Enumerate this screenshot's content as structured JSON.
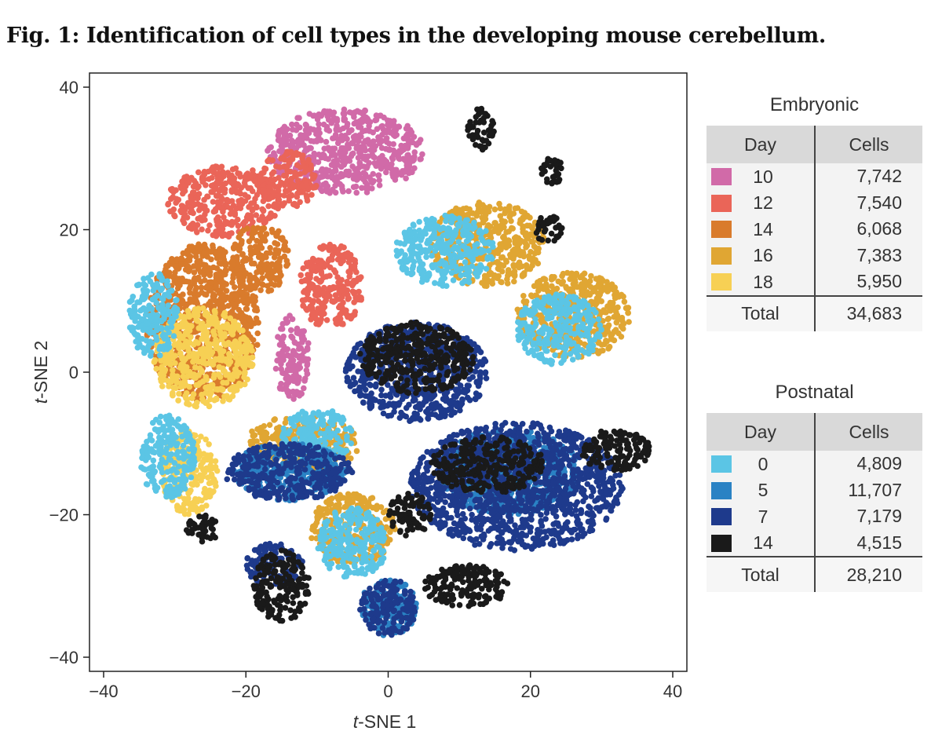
{
  "figure_title": "Fig. 1: Identification of cell types in the developing mouse cerebellum.",
  "chart_data": {
    "type": "scatter",
    "xlabel_italic": "t",
    "xlabel_rest": "-SNE 1",
    "ylabel_italic": "t",
    "ylabel_rest": "-SNE 2",
    "xlim": [
      -40,
      40
    ],
    "ylim": [
      -40,
      40
    ],
    "x_ticks": [
      -40,
      -20,
      0,
      20,
      40
    ],
    "y_ticks": [
      -40,
      -20,
      0,
      20,
      40
    ],
    "x_tick_labels": [
      "−40",
      "−20",
      "0",
      "20",
      "40"
    ],
    "y_tick_labels": [
      "−40",
      "−20",
      "0",
      "20",
      "40"
    ],
    "grid": false,
    "series_colors": {
      "E10": "#d16aa8",
      "E12": "#ea6558",
      "E14": "#d97b2c",
      "E16": "#e0a633",
      "E18": "#f7d054",
      "P0": "#5bc5e5",
      "P5": "#2a82c4",
      "P7": "#1e3a8c",
      "P14": "#1a1a1a"
    },
    "clusters": [
      {
        "group": "E10",
        "cx": -6,
        "cy": 31,
        "rx": 11,
        "ry": 6
      },
      {
        "group": "E10",
        "cx": -13.5,
        "cy": 2,
        "rx": 2.5,
        "ry": 6
      },
      {
        "group": "E12",
        "cx": -23,
        "cy": 24,
        "rx": 8,
        "ry": 5
      },
      {
        "group": "E12",
        "cx": -14,
        "cy": 27,
        "rx": 4,
        "ry": 4
      },
      {
        "group": "E12",
        "cx": -8,
        "cy": 12,
        "rx": 4.5,
        "ry": 6
      },
      {
        "group": "E14",
        "cx": -26,
        "cy": 7,
        "rx": 8,
        "ry": 11
      },
      {
        "group": "E14",
        "cx": -18,
        "cy": 16,
        "rx": 4,
        "ry": 5
      },
      {
        "group": "E16",
        "cx": 14,
        "cy": 18,
        "rx": 8,
        "ry": 6
      },
      {
        "group": "E16",
        "cx": 26,
        "cy": 8,
        "rx": 8,
        "ry": 6
      },
      {
        "group": "E16",
        "cx": -12,
        "cy": -10,
        "rx": 8,
        "ry": 4
      },
      {
        "group": "E16",
        "cx": -5,
        "cy": -22,
        "rx": 6,
        "ry": 5
      },
      {
        "group": "E18",
        "cx": -26,
        "cy": 2,
        "rx": 7,
        "ry": 7
      },
      {
        "group": "E18",
        "cx": -28,
        "cy": -14,
        "rx": 4,
        "ry": 6
      },
      {
        "group": "P0",
        "cx": -33,
        "cy": 8,
        "rx": 3.5,
        "ry": 6
      },
      {
        "group": "P0",
        "cx": -31,
        "cy": -12,
        "rx": 4,
        "ry": 6
      },
      {
        "group": "P0",
        "cx": 8,
        "cy": 17,
        "rx": 7,
        "ry": 5
      },
      {
        "group": "P0",
        "cx": 24,
        "cy": 6,
        "rx": 6,
        "ry": 5
      },
      {
        "group": "P0",
        "cx": -5,
        "cy": -24,
        "rx": 5,
        "ry": 5
      },
      {
        "group": "P0",
        "cx": -10,
        "cy": -9,
        "rx": 5,
        "ry": 4
      },
      {
        "group": "P5",
        "cx": -14,
        "cy": -14,
        "rx": 8,
        "ry": 4
      },
      {
        "group": "P5",
        "cx": 17,
        "cy": -14,
        "rx": 10,
        "ry": 6
      },
      {
        "group": "P5",
        "cx": 0,
        "cy": -33,
        "rx": 4,
        "ry": 4
      },
      {
        "group": "P7",
        "cx": 4,
        "cy": 0,
        "rx": 10,
        "ry": 7
      },
      {
        "group": "P7",
        "cx": 18,
        "cy": -16,
        "rx": 15,
        "ry": 9
      },
      {
        "group": "P7",
        "cx": -14,
        "cy": -14,
        "rx": 9,
        "ry": 4
      },
      {
        "group": "P7",
        "cx": 0,
        "cy": -33,
        "rx": 4,
        "ry": 4
      },
      {
        "group": "P7",
        "cx": -16,
        "cy": -27,
        "rx": 4,
        "ry": 3
      },
      {
        "group": "P14",
        "cx": 4,
        "cy": 2,
        "rx": 8,
        "ry": 5
      },
      {
        "group": "P14",
        "cx": 14,
        "cy": -13,
        "rx": 8,
        "ry": 4
      },
      {
        "group": "P14",
        "cx": 32,
        "cy": -11,
        "rx": 5,
        "ry": 3
      },
      {
        "group": "P14",
        "cx": 13,
        "cy": 34,
        "rx": 2,
        "ry": 3
      },
      {
        "group": "P14",
        "cx": 22.5,
        "cy": 20,
        "rx": 2,
        "ry": 2
      },
      {
        "group": "P14",
        "cx": 23,
        "cy": 28,
        "rx": 1.5,
        "ry": 2.5
      },
      {
        "group": "P14",
        "cx": -26,
        "cy": -22,
        "rx": 2.5,
        "ry": 2
      },
      {
        "group": "P14",
        "cx": -15,
        "cy": -30,
        "rx": 4,
        "ry": 5
      },
      {
        "group": "P14",
        "cx": 11,
        "cy": -30,
        "rx": 6,
        "ry": 3
      },
      {
        "group": "P14",
        "cx": 3,
        "cy": -20,
        "rx": 3,
        "ry": 3
      }
    ]
  },
  "legend": {
    "embryonic": {
      "heading": "Embryonic",
      "col_day": "Day",
      "col_cells": "Cells",
      "rows": [
        {
          "day": "10",
          "cells": "7,742",
          "color": "#d16aa8"
        },
        {
          "day": "12",
          "cells": "7,540",
          "color": "#ea6558"
        },
        {
          "day": "14",
          "cells": "6,068",
          "color": "#d97b2c"
        },
        {
          "day": "16",
          "cells": "7,383",
          "color": "#e0a633"
        },
        {
          "day": "18",
          "cells": "5,950",
          "color": "#f7d054"
        }
      ],
      "total_label": "Total",
      "total_value": "34,683"
    },
    "postnatal": {
      "heading": "Postnatal",
      "col_day": "Day",
      "col_cells": "Cells",
      "rows": [
        {
          "day": "0",
          "cells": "4,809",
          "color": "#5bc5e5"
        },
        {
          "day": "5",
          "cells": "11,707",
          "color": "#2a82c4"
        },
        {
          "day": "7",
          "cells": "7,179",
          "color": "#1e3a8c"
        },
        {
          "day": "14",
          "cells": "4,515",
          "color": "#1a1a1a"
        }
      ],
      "total_label": "Total",
      "total_value": "28,210"
    }
  }
}
